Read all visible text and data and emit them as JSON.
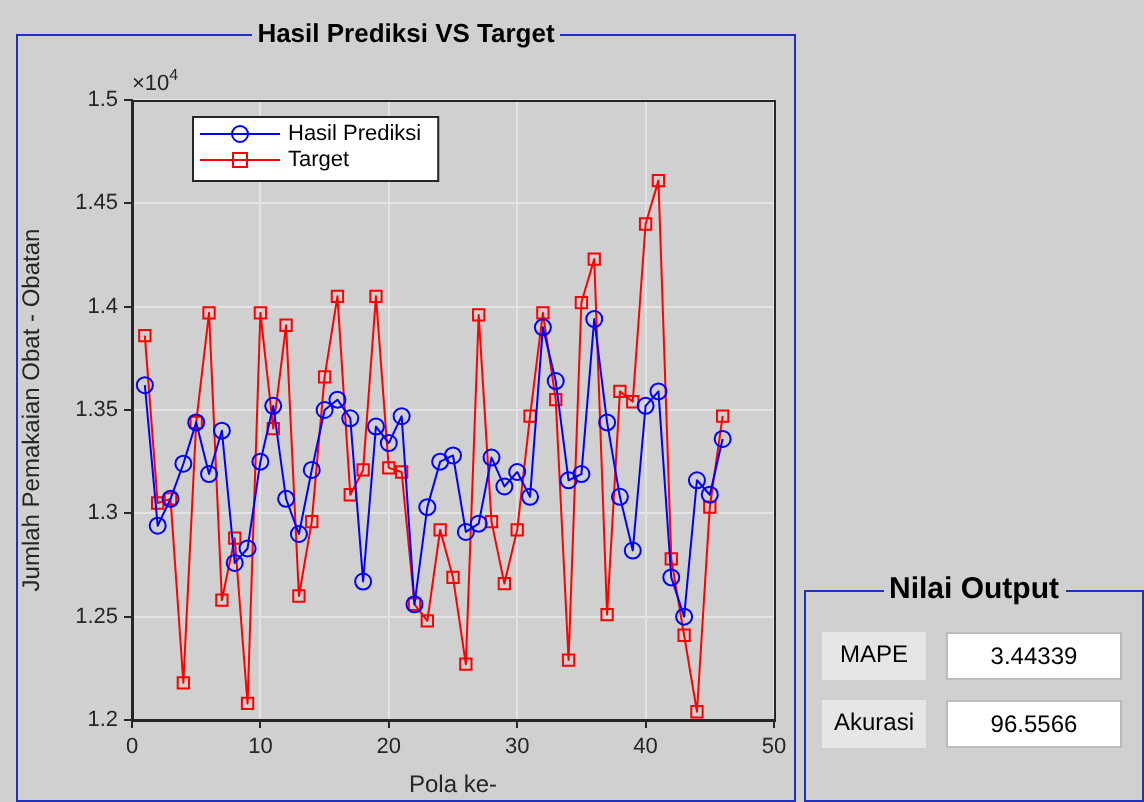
{
  "chart_data": [
    {
      "type": "line",
      "title": "Hasil Prediksi VS Target",
      "xlabel": "Pola ke-",
      "ylabel": "Jumlah Pemakaian Obat - Obatan",
      "x": [
        1,
        2,
        3,
        4,
        5,
        6,
        7,
        8,
        9,
        10,
        11,
        12,
        13,
        14,
        15,
        16,
        17,
        18,
        19,
        20,
        21,
        22,
        23,
        24,
        25,
        26,
        27,
        28,
        29,
        30,
        31,
        32,
        33,
        34,
        35,
        36,
        37,
        38,
        39,
        40,
        41,
        42,
        43,
        44,
        45,
        46
      ],
      "series": [
        {
          "name": "Hasil Prediksi",
          "color": "#0000ff",
          "marker": "circle",
          "values": [
            1.362,
            1.294,
            1.307,
            1.324,
            1.344,
            1.319,
            1.34,
            1.276,
            1.283,
            1.325,
            1.352,
            1.307,
            1.29,
            1.321,
            1.35,
            1.355,
            1.346,
            1.267,
            1.342,
            1.334,
            1.347,
            1.256,
            1.303,
            1.325,
            1.328,
            1.291,
            1.295,
            1.327,
            1.313,
            1.32,
            1.308,
            1.39,
            1.364,
            1.316,
            1.319,
            1.394,
            1.344,
            1.308,
            1.282,
            1.352,
            1.359,
            1.269,
            1.25,
            1.316,
            1.309,
            1.336
          ]
        },
        {
          "name": "Target",
          "color": "#ff0000",
          "marker": "square",
          "values": [
            1.386,
            1.305,
            1.307,
            1.218,
            1.344,
            1.397,
            1.258,
            1.288,
            1.208,
            1.397,
            1.341,
            1.391,
            1.26,
            1.296,
            1.366,
            1.405,
            1.309,
            1.321,
            1.405,
            1.322,
            1.32,
            1.256,
            1.248,
            1.292,
            1.269,
            1.227,
            1.396,
            1.296,
            1.266,
            1.292,
            1.347,
            1.397,
            1.355,
            1.229,
            1.402,
            1.423,
            1.251,
            1.359,
            1.354,
            1.44,
            1.461,
            1.278,
            1.241,
            1.204,
            1.303,
            1.347
          ]
        }
      ],
      "xlim": [
        0,
        50
      ],
      "xticks": [
        0,
        10,
        20,
        30,
        40,
        50
      ],
      "ylim": [
        1.2,
        1.5
      ],
      "yticks": [
        1.2,
        1.25,
        1.3,
        1.35,
        1.4,
        1.45,
        1.5
      ],
      "annotations": [
        "×10$^{4}$"
      ],
      "grid": true,
      "legend": "top left",
      "line_style": "solid"
    },
    {
      "type": "other",
      "title": "Nilai Output",
      "annotations": [
        "MAPE",
        "3.44339",
        "Akurasi",
        "96.5566"
      ]
    }
  ]
}
